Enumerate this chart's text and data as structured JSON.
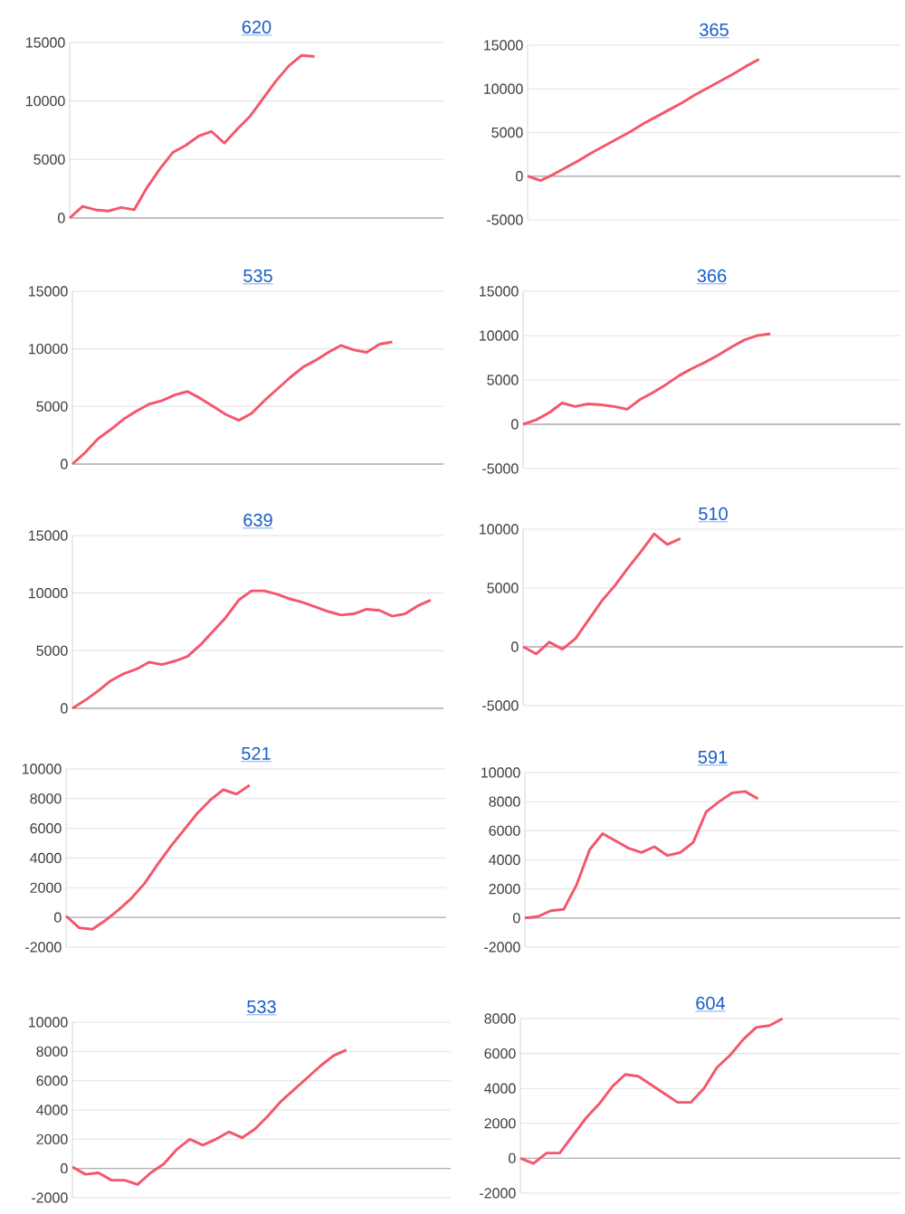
{
  "chart_data": [
    {
      "type": "line",
      "title": "620",
      "categories": [
        null,
        null,
        null,
        null,
        null,
        null,
        null,
        null,
        null,
        null,
        null,
        null,
        null,
        null,
        null,
        null,
        null,
        null,
        null,
        null,
        null,
        null,
        null,
        null,
        null,
        null,
        null,
        null,
        null,
        null
      ],
      "values": [
        0,
        1000,
        700,
        600,
        900,
        700,
        2600,
        4200,
        5600,
        6200,
        7000,
        7400,
        6400,
        7600,
        8700,
        10200,
        11700,
        13000,
        13900,
        13800,
        null,
        null,
        null,
        null,
        null,
        null,
        null,
        null,
        null,
        null
      ],
      "color": "#f4566c",
      "ylim": [
        0,
        15000
      ],
      "yticks": [
        0,
        5000,
        10000,
        15000
      ],
      "grid": "y",
      "tick_labels": "y"
    },
    {
      "type": "line",
      "title": "365",
      "categories": [
        null,
        null,
        null,
        null,
        null,
        null,
        null,
        null,
        null,
        null,
        null,
        null,
        null,
        null,
        null,
        null,
        null,
        null,
        null,
        null,
        null,
        null,
        null,
        null,
        null,
        null,
        null,
        null,
        null,
        null
      ],
      "values": [
        0,
        -500,
        200,
        1000,
        1800,
        2700,
        3500,
        4300,
        5100,
        6000,
        6800,
        7600,
        8400,
        9300,
        10100,
        10900,
        11700,
        12600,
        13400,
        null,
        null,
        null,
        null,
        null,
        null,
        null,
        null,
        null,
        null,
        null
      ],
      "color": "#f4566c",
      "ylim": [
        -5000,
        15000
      ],
      "yticks": [
        -5000,
        0,
        5000,
        10000,
        15000
      ],
      "grid": "y",
      "tick_labels": "y"
    },
    {
      "type": "line",
      "title": "535",
      "categories": [
        null,
        null,
        null,
        null,
        null,
        null,
        null,
        null,
        null,
        null,
        null,
        null,
        null,
        null,
        null,
        null,
        null,
        null,
        null,
        null,
        null,
        null,
        null,
        null,
        null,
        null,
        null,
        null,
        null,
        null
      ],
      "values": [
        0,
        1000,
        2200,
        3000,
        3900,
        4600,
        5200,
        5500,
        6000,
        6300,
        5700,
        5000,
        4300,
        3800,
        4400,
        5500,
        6500,
        7500,
        8400,
        9000,
        9700,
        10300,
        9900,
        9700,
        10400,
        10600,
        null,
        null,
        null,
        null
      ],
      "color": "#f4566c",
      "ylim": [
        0,
        15000
      ],
      "yticks": [
        0,
        5000,
        10000,
        15000
      ],
      "grid": "y",
      "tick_labels": "y"
    },
    {
      "type": "line",
      "title": "366",
      "categories": [
        null,
        null,
        null,
        null,
        null,
        null,
        null,
        null,
        null,
        null,
        null,
        null,
        null,
        null,
        null,
        null,
        null,
        null,
        null,
        null,
        null,
        null,
        null,
        null,
        null,
        null,
        null,
        null,
        null,
        null
      ],
      "values": [
        0,
        500,
        1300,
        2400,
        2000,
        2300,
        2200,
        2000,
        1700,
        2800,
        3600,
        4500,
        5500,
        6300,
        7000,
        7800,
        8700,
        9500,
        10000,
        10200,
        null,
        null,
        null,
        null,
        null,
        null,
        null,
        null,
        null,
        null
      ],
      "color": "#f4566c",
      "ylim": [
        -5000,
        15000
      ],
      "yticks": [
        -5000,
        0,
        5000,
        10000,
        15000
      ],
      "grid": "y",
      "tick_labels": "y"
    },
    {
      "type": "line",
      "title": "639",
      "categories": [
        null,
        null,
        null,
        null,
        null,
        null,
        null,
        null,
        null,
        null,
        null,
        null,
        null,
        null,
        null,
        null,
        null,
        null,
        null,
        null,
        null,
        null,
        null,
        null,
        null,
        null,
        null,
        null,
        null,
        null
      ],
      "values": [
        0,
        700,
        1500,
        2400,
        3000,
        3400,
        4000,
        3800,
        4100,
        4500,
        5500,
        6700,
        7900,
        9400,
        10200,
        10200,
        9900,
        9500,
        9200,
        8800,
        8400,
        8100,
        8200,
        8600,
        8500,
        8000,
        8200,
        8900,
        9400,
        null
      ],
      "color": "#f4566c",
      "ylim": [
        0,
        15000
      ],
      "yticks": [
        0,
        5000,
        10000,
        15000
      ],
      "grid": "y",
      "tick_labels": "y"
    },
    {
      "type": "line",
      "title": "510",
      "categories": [
        null,
        null,
        null,
        null,
        null,
        null,
        null,
        null,
        null,
        null,
        null,
        null,
        null,
        null,
        null,
        null,
        null,
        null,
        null,
        null,
        null,
        null,
        null,
        null,
        null,
        null,
        null,
        null,
        null,
        null
      ],
      "values": [
        0,
        -600,
        400,
        -200,
        700,
        2300,
        3900,
        5200,
        6700,
        8100,
        9600,
        8700,
        9200,
        null,
        null,
        null,
        null,
        null,
        null,
        null,
        null,
        null,
        null,
        null,
        null,
        null,
        null,
        null,
        null,
        null
      ],
      "color": "#f4566c",
      "ylim": [
        -5000,
        10000
      ],
      "yticks": [
        -5000,
        0,
        5000,
        10000
      ],
      "grid": "y",
      "tick_labels": "y"
    },
    {
      "type": "line",
      "title": "521",
      "categories": [
        null,
        null,
        null,
        null,
        null,
        null,
        null,
        null,
        null,
        null,
        null,
        null,
        null,
        null,
        null,
        null,
        null,
        null,
        null,
        null,
        null,
        null,
        null,
        null,
        null,
        null,
        null,
        null,
        null,
        null
      ],
      "values": [
        100,
        -700,
        -800,
        -200,
        500,
        1300,
        2300,
        3600,
        4800,
        5900,
        7000,
        7900,
        8600,
        8300,
        8900,
        null,
        null,
        null,
        null,
        null,
        null,
        null,
        null,
        null,
        null,
        null,
        null,
        null,
        null,
        null
      ],
      "color": "#f4566c",
      "ylim": [
        -2000,
        10000
      ],
      "yticks": [
        -2000,
        0,
        2000,
        4000,
        6000,
        8000,
        10000
      ],
      "grid": "y",
      "tick_labels": "y"
    },
    {
      "type": "line",
      "title": "591",
      "categories": [
        null,
        null,
        null,
        null,
        null,
        null,
        null,
        null,
        null,
        null,
        null,
        null,
        null,
        null,
        null,
        null,
        null,
        null,
        null,
        null,
        null,
        null,
        null,
        null,
        null,
        null,
        null,
        null,
        null,
        null
      ],
      "values": [
        0,
        100,
        500,
        600,
        2300,
        4700,
        5800,
        5300,
        4800,
        4500,
        4900,
        4300,
        4500,
        5200,
        7300,
        8000,
        8600,
        8700,
        8200,
        null,
        null,
        null,
        null,
        null,
        null,
        null,
        null,
        null,
        null,
        null
      ],
      "color": "#f4566c",
      "ylim": [
        -2000,
        10000
      ],
      "yticks": [
        -2000,
        0,
        2000,
        4000,
        6000,
        8000,
        10000
      ],
      "grid": "y",
      "tick_labels": "y"
    },
    {
      "type": "line",
      "title": "533",
      "categories": [
        null,
        null,
        null,
        null,
        null,
        null,
        null,
        null,
        null,
        null,
        null,
        null,
        null,
        null,
        null,
        null,
        null,
        null,
        null,
        null,
        null,
        null,
        null,
        null,
        null,
        null,
        null,
        null,
        null,
        null
      ],
      "values": [
        100,
        -400,
        -300,
        -800,
        -800,
        -1100,
        -300,
        300,
        1300,
        2000,
        1600,
        2000,
        2500,
        2100,
        2700,
        3600,
        4600,
        5400,
        6200,
        7000,
        7700,
        8100,
        null,
        null,
        null,
        null,
        null,
        null,
        null,
        null
      ],
      "color": "#f4566c",
      "ylim": [
        -2000,
        10000
      ],
      "yticks": [
        -2000,
        0,
        2000,
        4000,
        6000,
        8000,
        10000
      ],
      "grid": "y",
      "tick_labels": "y"
    },
    {
      "type": "line",
      "title": "604",
      "categories": [
        null,
        null,
        null,
        null,
        null,
        null,
        null,
        null,
        null,
        null,
        null,
        null,
        null,
        null,
        null,
        null,
        null,
        null,
        null,
        null,
        null,
        null,
        null,
        null,
        null,
        null,
        null,
        null,
        null,
        null
      ],
      "values": [
        0,
        -300,
        300,
        300,
        1300,
        2300,
        3100,
        4100,
        4800,
        4700,
        4200,
        3700,
        3200,
        3200,
        4000,
        5200,
        5900,
        6800,
        7500,
        7600,
        8000,
        null,
        null,
        null,
        null,
        null,
        null,
        null,
        null,
        null
      ],
      "color": "#f4566c",
      "ylim": [
        -2000,
        8000
      ],
      "yticks": [
        -2000,
        0,
        2000,
        4000,
        6000,
        8000
      ],
      "grid": "y",
      "tick_labels": "y"
    }
  ]
}
